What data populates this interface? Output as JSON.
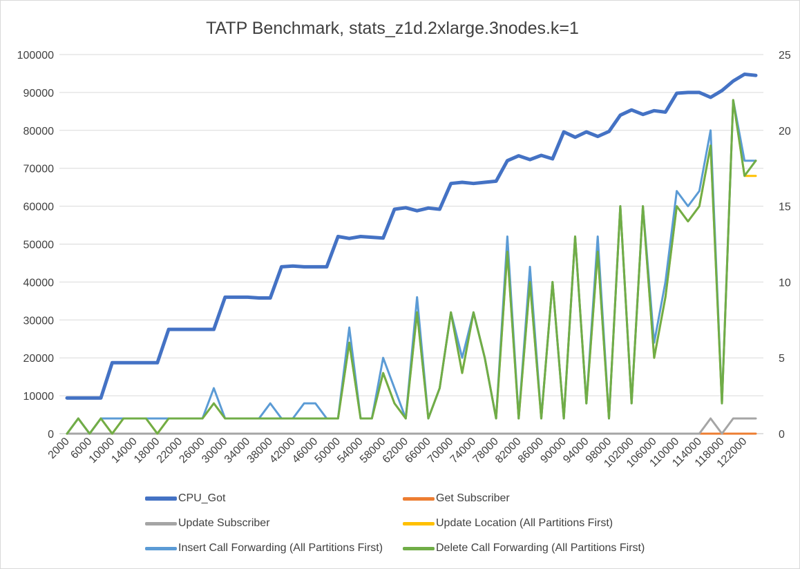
{
  "chart_data": {
    "type": "line",
    "title": "TATP Benchmark, stats_z1d.2xlarge.3nodes.k=1",
    "xlabel": "",
    "ylabel": "",
    "y2label": "",
    "ylim": [
      0,
      100000
    ],
    "y2lim": [
      0,
      25
    ],
    "grid": true,
    "legend_position": "bottom",
    "yticks": [
      "0",
      "10000",
      "20000",
      "30000",
      "40000",
      "50000",
      "60000",
      "70000",
      "80000",
      "90000",
      "100000"
    ],
    "y2ticks": [
      "0",
      "5",
      "10",
      "15",
      "20",
      "25"
    ],
    "x": [
      2000,
      4000,
      6000,
      8000,
      10000,
      12000,
      14000,
      16000,
      18000,
      20000,
      22000,
      24000,
      26000,
      28000,
      30000,
      32000,
      34000,
      36000,
      38000,
      40000,
      42000,
      44000,
      46000,
      48000,
      50000,
      52000,
      54000,
      56000,
      58000,
      60000,
      62000,
      64000,
      66000,
      68000,
      70000,
      72000,
      74000,
      76000,
      78000,
      80000,
      82000,
      84000,
      86000,
      88000,
      90000,
      92000,
      94000,
      96000,
      98000,
      100000,
      102000,
      104000,
      106000,
      108000,
      110000,
      112000,
      114000,
      116000,
      118000,
      120000,
      122000,
      124000
    ],
    "series": [
      {
        "name": "CPU_Got",
        "axis": "left",
        "color": "#4472c4",
        "width": 5,
        "values": [
          9400,
          9400,
          9400,
          9400,
          18700,
          18700,
          18700,
          18700,
          18700,
          27500,
          27500,
          27500,
          27500,
          27500,
          36000,
          36000,
          36000,
          35800,
          35800,
          44000,
          44200,
          44000,
          44000,
          44000,
          52000,
          51500,
          52000,
          51800,
          51600,
          59200,
          59600,
          58800,
          59500,
          59200,
          66000,
          66300,
          66000,
          66300,
          66600,
          72000,
          73300,
          72300,
          73400,
          72500,
          79600,
          78200,
          79600,
          78400,
          79700,
          84000,
          85400,
          84200,
          85200,
          84800,
          89800,
          90000,
          90000,
          88700,
          90500,
          93000,
          94800,
          94500
        ]
      },
      {
        "name": "Get Subscriber",
        "axis": "right",
        "color": "#ed7d31",
        "width": 3,
        "values": [
          0,
          0,
          0,
          0,
          0,
          0,
          0,
          0,
          0,
          0,
          0,
          0,
          0,
          0,
          0,
          0,
          0,
          0,
          0,
          0,
          0,
          0,
          0,
          0,
          0,
          0,
          0,
          0,
          0,
          0,
          0,
          0,
          0,
          0,
          0,
          0,
          0,
          0,
          0,
          0,
          0,
          0,
          0,
          0,
          0,
          0,
          0,
          0,
          0,
          0,
          0,
          0,
          0,
          0,
          0,
          0,
          0,
          0,
          0,
          0,
          0,
          0
        ]
      },
      {
        "name": "Update Subscriber",
        "axis": "right",
        "color": "#a5a5a5",
        "width": 3,
        "values": [
          0,
          0,
          0,
          0,
          0,
          0,
          0,
          0,
          0,
          0,
          0,
          0,
          0,
          0,
          0,
          0,
          0,
          0,
          0,
          0,
          0,
          0,
          0,
          0,
          0,
          0,
          0,
          0,
          0,
          0,
          0,
          0,
          0,
          0,
          0,
          0,
          0,
          0,
          0,
          0,
          0,
          0,
          0,
          0,
          0,
          0,
          0,
          0,
          0,
          0,
          0,
          0,
          0,
          0,
          0,
          0,
          0,
          1,
          0,
          1,
          1,
          1
        ]
      },
      {
        "name": "Update Location (All Partitions First)",
        "axis": "right",
        "color": "#ffc000",
        "width": 3,
        "values": [
          0,
          1,
          0,
          1,
          0,
          1,
          1,
          1,
          0,
          1,
          1,
          1,
          1,
          2,
          1,
          1,
          1,
          1,
          1,
          1,
          1,
          1,
          1,
          1,
          1,
          6,
          1,
          1,
          4,
          2,
          1,
          8,
          1,
          3,
          8,
          4,
          8,
          5,
          1,
          12,
          1,
          10,
          1,
          10,
          1,
          13,
          2,
          12,
          1,
          15,
          2,
          15,
          5,
          9,
          15,
          14,
          15,
          19,
          2,
          22,
          17,
          17
        ]
      },
      {
        "name": "Insert Call Forwarding (All Partitions First)",
        "axis": "right",
        "color": "#5b9bd5",
        "width": 3,
        "values": [
          0,
          1,
          0,
          1,
          1,
          1,
          1,
          1,
          1,
          1,
          1,
          1,
          1,
          3,
          1,
          1,
          1,
          1,
          2,
          1,
          1,
          2,
          2,
          1,
          1,
          7,
          1,
          1,
          5,
          3,
          1,
          9,
          1,
          3,
          8,
          5,
          8,
          5,
          1,
          13,
          1,
          11,
          1,
          10,
          1,
          13,
          2,
          13,
          1,
          15,
          2,
          15,
          6,
          10,
          16,
          15,
          16,
          20,
          2,
          22,
          18,
          18
        ]
      },
      {
        "name": "Delete Call Forwarding (All Partitions First)",
        "axis": "right",
        "color": "#70ad47",
        "width": 3,
        "values": [
          0,
          1,
          0,
          1,
          0,
          1,
          1,
          1,
          0,
          1,
          1,
          1,
          1,
          2,
          1,
          1,
          1,
          1,
          1,
          1,
          1,
          1,
          1,
          1,
          1,
          6,
          1,
          1,
          4,
          2,
          1,
          8,
          1,
          3,
          8,
          4,
          8,
          5,
          1,
          12,
          1,
          10,
          1,
          10,
          1,
          13,
          2,
          12,
          1,
          15,
          2,
          15,
          5,
          9,
          15,
          14,
          15,
          19,
          2,
          22,
          17,
          18
        ]
      }
    ]
  }
}
